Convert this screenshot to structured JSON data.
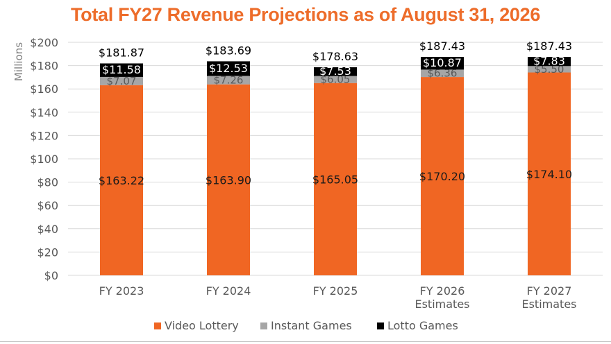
{
  "colors": {
    "video_lottery": "#F06623",
    "instant_games": "#A6A6A6",
    "lotto_games": "#000000",
    "title": "#ED6C2A",
    "grid": "#d9d9d9",
    "axis_text": "#595959"
  },
  "chart_data": {
    "type": "bar",
    "stacked": true,
    "title": "Total FY27 Revenue Projections as of August 31, 2026",
    "ylabel": "Millions",
    "xlabel": "",
    "ylim": [
      0,
      200
    ],
    "y_ticks": [
      "$0",
      "$20",
      "$40",
      "$60",
      "$80",
      "$100",
      "$120",
      "$140",
      "$160",
      "$180",
      "$200"
    ],
    "categories": [
      [
        "FY 2023"
      ],
      [
        "FY 2024"
      ],
      [
        "FY 2025"
      ],
      [
        "FY 2026",
        "Estimates"
      ],
      [
        "FY 2027",
        "Estimates"
      ]
    ],
    "series": [
      {
        "name": "Video Lottery",
        "values": [
          163.22,
          163.9,
          165.05,
          170.2,
          174.1
        ],
        "labels": [
          "$163.22",
          "$163.90",
          "$165.05",
          "$170.20",
          "$174.10"
        ]
      },
      {
        "name": "Instant Games",
        "values": [
          7.07,
          7.26,
          6.05,
          6.36,
          5.5
        ],
        "labels": [
          "$7.07",
          "$7.26",
          "$6.05",
          "$6.36",
          "$5.50"
        ]
      },
      {
        "name": "Lotto Games",
        "values": [
          11.58,
          12.53,
          7.53,
          10.87,
          7.83
        ],
        "labels": [
          "$11.58",
          "$12.53",
          "$7.53",
          "$10.87",
          "$7.83"
        ]
      }
    ],
    "totals": [
      "$181.87",
      "$183.69",
      "$178.63",
      "$187.43",
      "$187.43"
    ],
    "grid": true,
    "legend_position": "bottom"
  }
}
